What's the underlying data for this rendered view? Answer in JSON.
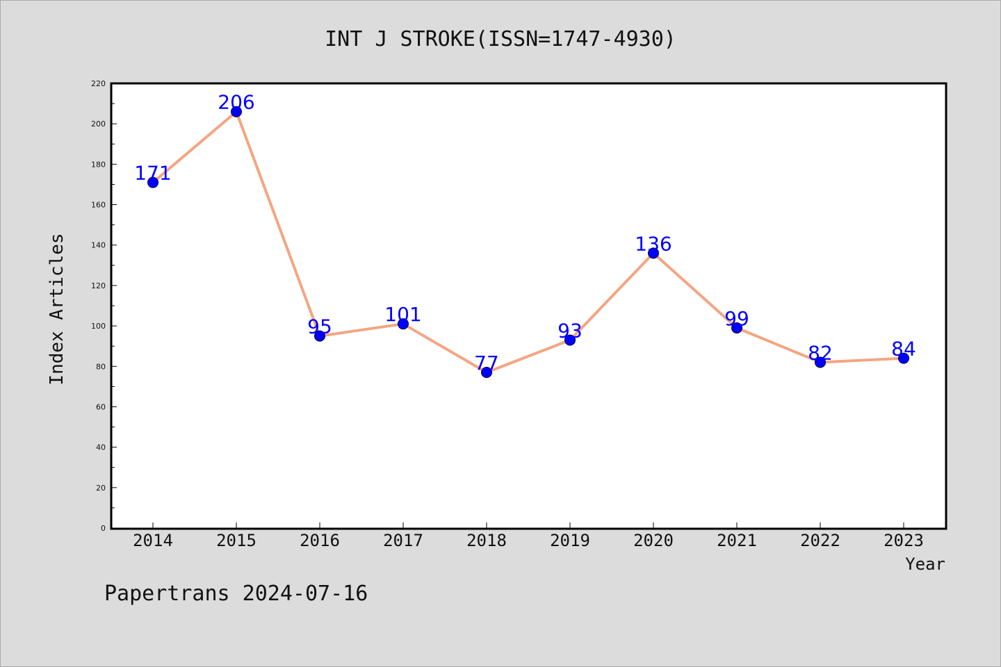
{
  "chart_data": {
    "type": "line",
    "title": "INT J STROKE(ISSN=1747-4930)",
    "xlabel": "Year",
    "ylabel": "Index Articles",
    "categories": [
      "2014",
      "2015",
      "2016",
      "2017",
      "2018",
      "2019",
      "2020",
      "2021",
      "2022",
      "2023"
    ],
    "series": [
      {
        "values": [
          171,
          206,
          95,
          101,
          77,
          93,
          136,
          99,
          82,
          84
        ]
      }
    ],
    "ylim": [
      0,
      220
    ],
    "yticks": [
      0,
      20,
      40,
      60,
      80,
      100,
      120,
      140,
      160,
      180,
      200,
      220
    ],
    "grid": false,
    "line_color": "#f4a582",
    "marker_color": "#0000ff",
    "label_color": "#0000ff"
  },
  "footer": "Papertrans 2024-07-16"
}
